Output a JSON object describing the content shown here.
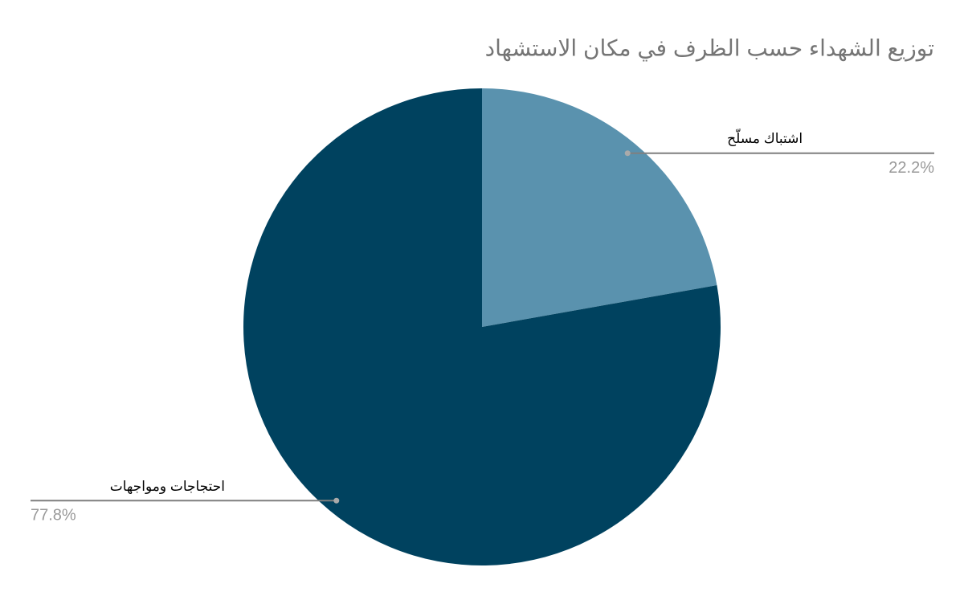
{
  "chart_data": {
    "type": "pie",
    "title": "توزيع الشهداء حسب الظرف في مكان الاستشهاد",
    "categories": [
      "اشتباك مسلّح",
      "احتجاجات ومواجهات"
    ],
    "values": [
      22.2,
      77.8
    ],
    "value_labels": [
      "22.2%",
      "77.8%"
    ],
    "colors": [
      "#5a92ae",
      "#00425f"
    ]
  }
}
